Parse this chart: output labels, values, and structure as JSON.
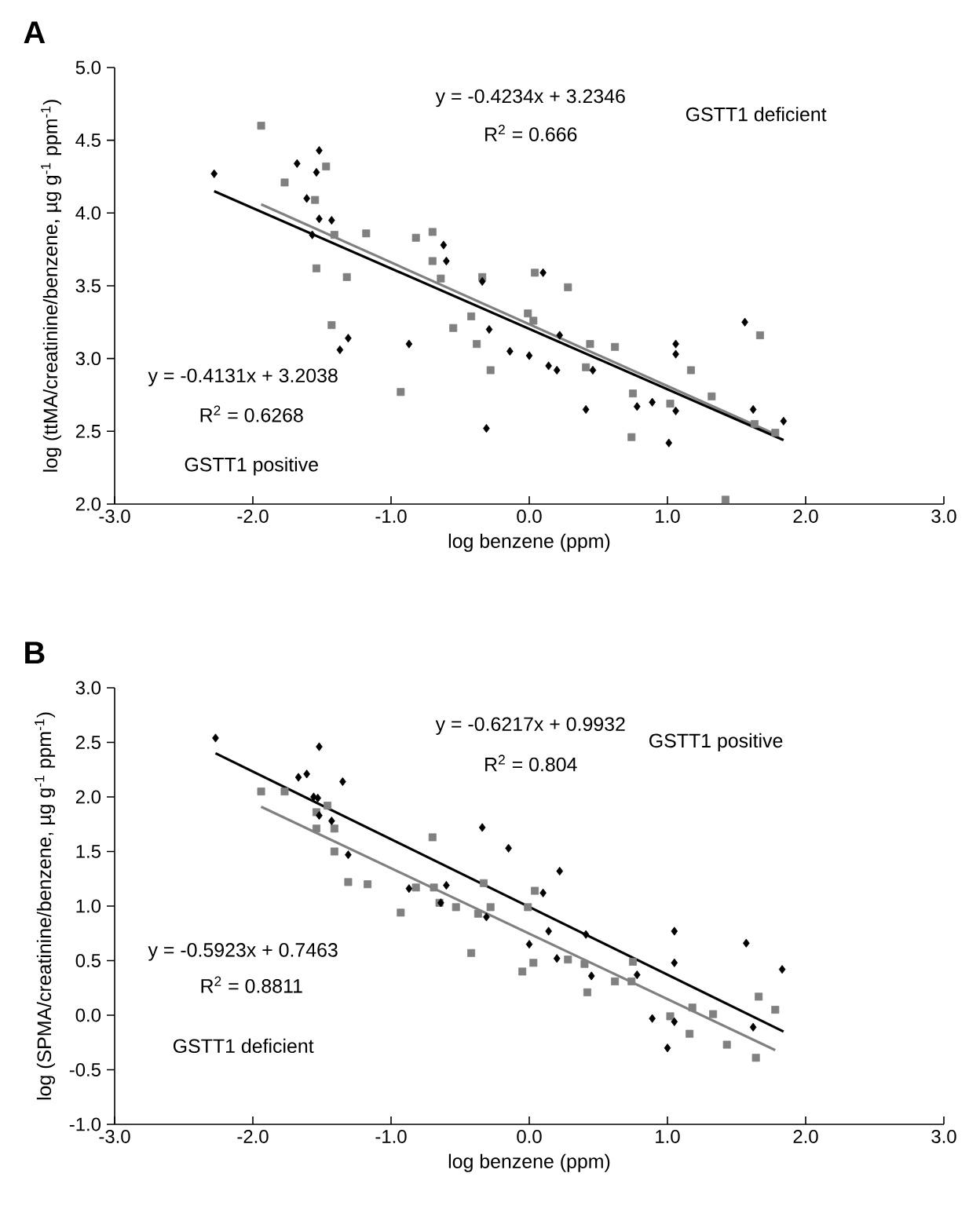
{
  "chart_data": [
    {
      "type": "scatter",
      "title": "A",
      "xlabel": "log benzene (ppm)",
      "ylabel": "log (ttMA/creatinine/benzene, µg g$^{-1}$ ppm$^{-1}$)",
      "xlim": [
        -3,
        3
      ],
      "ylim": [
        2,
        5
      ],
      "xticks": [
        {
          "value": -3,
          "label": "-3.0"
        },
        {
          "value": -2,
          "label": "-2.0"
        },
        {
          "value": -1,
          "label": "-1.0"
        },
        {
          "value": 0,
          "label": "0.0"
        },
        {
          "value": 1,
          "label": "1.0"
        },
        {
          "value": 2,
          "label": "2.0"
        },
        {
          "value": 3,
          "label": "3.0"
        }
      ],
      "yticks": [
        {
          "value": 2,
          "label": "2.0"
        },
        {
          "value": 2.5,
          "label": "2.5"
        },
        {
          "value": 3,
          "label": "3.0"
        },
        {
          "value": 3.5,
          "label": "3.5"
        },
        {
          "value": 4,
          "label": "4.0"
        },
        {
          "value": 4.5,
          "label": "4.5"
        },
        {
          "value": 5,
          "label": "5.0"
        }
      ],
      "annotations": [
        "y = -0.4234x + 3.2346",
        "R$^{2}$ = 0.666",
        "GSTT1 deficient",
        "y = -0.4131x + 3.2038",
        "R$^{2}$ = 0.6268",
        "GSTT1 positive"
      ],
      "series": [
        {
          "color": "#808080",
          "marker": "square",
          "x": [
            -1.94,
            -1.77,
            -1.47,
            -1.55,
            -1.41,
            -1.54,
            -1.32,
            -1.18,
            -0.82,
            -0.7,
            -0.7,
            -0.64,
            -0.34,
            -0.55,
            -0.42,
            -0.38,
            -0.28,
            -1.43,
            -0.93,
            0.04,
            -0.01,
            0.03,
            0.28,
            0.44,
            0.62,
            0.41,
            1.17,
            0.75,
            0.74,
            1.02,
            1.32,
            1.67,
            1.63,
            1.78,
            1.42
          ],
          "values": [
            4.6,
            4.21,
            4.32,
            4.09,
            3.85,
            3.62,
            3.56,
            3.86,
            3.83,
            3.87,
            3.67,
            3.55,
            3.56,
            3.21,
            3.29,
            3.1,
            2.92,
            3.23,
            2.77,
            3.59,
            3.31,
            3.26,
            3.49,
            3.1,
            3.08,
            2.94,
            2.92,
            2.76,
            2.46,
            2.69,
            2.74,
            3.16,
            2.55,
            2.49,
            2.03
          ]
        },
        {
          "color": "#000000",
          "marker": "diamond",
          "x": [
            -2.28,
            -1.68,
            -1.52,
            -1.54,
            -1.61,
            -1.52,
            -1.43,
            -1.57,
            -0.62,
            -0.6,
            -0.34,
            -0.29,
            -0.87,
            -1.31,
            -1.37,
            -0.14,
            0.0,
            -0.31,
            0.1,
            0.22,
            0.14,
            0.2,
            0.46,
            0.41,
            0.78,
            0.89,
            1.01,
            1.06,
            1.06,
            1.06,
            1.56,
            1.62,
            1.84
          ],
          "values": [
            4.27,
            4.34,
            4.43,
            4.28,
            4.1,
            3.96,
            3.95,
            3.85,
            3.78,
            3.67,
            3.53,
            3.2,
            3.1,
            3.14,
            3.06,
            3.05,
            3.02,
            2.52,
            3.59,
            3.16,
            2.95,
            2.92,
            2.92,
            2.65,
            2.67,
            2.7,
            2.42,
            2.64,
            3.1,
            3.03,
            3.25,
            2.65,
            2.57
          ]
        },
        {
          "type": "line",
          "color": "#808080",
          "x": [
            -1.94,
            1.78
          ],
          "values": [
            4.06,
            2.48
          ]
        },
        {
          "type": "line",
          "color": "#000000",
          "x": [
            -2.28,
            1.84
          ],
          "values": [
            4.15,
            2.44
          ]
        }
      ]
    },
    {
      "type": "scatter",
      "title": "B",
      "xlabel": "log benzene (ppm)",
      "ylabel": "log (SPMA/creatinine/benzene, µg g$^{-1}$ ppm$^{-1}$)",
      "xlim": [
        -3,
        3
      ],
      "ylim": [
        -1,
        3
      ],
      "xticks": [
        {
          "value": -3,
          "label": "-3.0"
        },
        {
          "value": -2,
          "label": "-2.0"
        },
        {
          "value": -1,
          "label": "-1.0"
        },
        {
          "value": 0,
          "label": "0.0"
        },
        {
          "value": 1,
          "label": "1.0"
        },
        {
          "value": 2,
          "label": "2.0"
        },
        {
          "value": 3,
          "label": "3.0"
        }
      ],
      "yticks": [
        {
          "value": -1,
          "label": "-1.0"
        },
        {
          "value": -0.5,
          "label": "-0.5"
        },
        {
          "value": 0,
          "label": "0.0"
        },
        {
          "value": 0.5,
          "label": "0.5"
        },
        {
          "value": 1,
          "label": "1.0"
        },
        {
          "value": 1.5,
          "label": "1.5"
        },
        {
          "value": 2,
          "label": "2.0"
        },
        {
          "value": 2.5,
          "label": "2.5"
        },
        {
          "value": 3,
          "label": "3.0"
        }
      ],
      "annotations": [
        "y = -0.6217x + 0.9932",
        "R$^{2}$ = 0.804",
        "GSTT1 positive",
        "y = -0.5923x + 0.7463",
        "R$^{2}$ = 0.8811",
        "GSTT1 deficient"
      ],
      "series": [
        {
          "color": "#808080",
          "marker": "square",
          "x": [
            -1.94,
            -1.77,
            -1.46,
            -1.54,
            -1.54,
            -1.41,
            -1.41,
            -1.31,
            -1.17,
            -0.93,
            -0.7,
            -0.82,
            -0.69,
            -0.65,
            -0.53,
            -0.37,
            -0.33,
            -0.28,
            -0.42,
            -0.05,
            0.03,
            0.04,
            -0.01,
            0.28,
            0.4,
            0.42,
            0.62,
            0.74,
            0.75,
            1.02,
            1.16,
            1.18,
            1.33,
            1.43,
            1.64,
            1.66,
            1.78
          ],
          "values": [
            2.05,
            2.05,
            1.92,
            1.86,
            1.71,
            1.71,
            1.5,
            1.22,
            1.2,
            0.94,
            1.63,
            1.17,
            1.17,
            1.03,
            0.99,
            0.93,
            1.21,
            0.99,
            0.57,
            0.4,
            0.48,
            1.14,
            0.99,
            0.51,
            0.47,
            0.21,
            0.31,
            0.31,
            0.49,
            -0.01,
            -0.17,
            0.07,
            0.01,
            -0.27,
            -0.39,
            0.17,
            0.05
          ]
        },
        {
          "color": "#000000",
          "marker": "diamond",
          "x": [
            -2.27,
            -1.52,
            -1.67,
            -1.61,
            -1.56,
            -1.53,
            -1.52,
            -1.43,
            -1.35,
            -1.31,
            -0.87,
            -0.6,
            -0.64,
            -0.34,
            -0.15,
            -0.31,
            0.0,
            0.22,
            0.1,
            0.14,
            0.2,
            0.41,
            0.45,
            0.78,
            0.89,
            1.0,
            1.05,
            1.05,
            1.05,
            1.57,
            1.62,
            1.83
          ],
          "values": [
            2.54,
            2.46,
            2.18,
            2.21,
            2.0,
            1.99,
            1.83,
            1.78,
            2.14,
            1.47,
            1.16,
            1.19,
            1.03,
            1.72,
            1.53,
            0.9,
            0.65,
            1.32,
            1.12,
            0.77,
            0.52,
            0.74,
            0.36,
            0.37,
            -0.03,
            -0.3,
            0.77,
            0.48,
            -0.06,
            0.66,
            -0.11,
            0.42
          ]
        },
        {
          "type": "line",
          "color": "#808080",
          "x": [
            -1.94,
            1.78
          ],
          "values": [
            1.91,
            -0.32
          ]
        },
        {
          "type": "line",
          "color": "#000000",
          "x": [
            -2.27,
            1.84
          ],
          "values": [
            2.4,
            -0.15
          ]
        }
      ]
    }
  ]
}
